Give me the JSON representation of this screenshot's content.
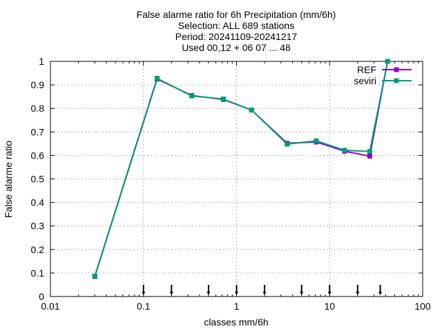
{
  "chart_data": {
    "type": "line",
    "title_lines": [
      "False alarme ratio  for 6h Precipitation (mm/6h)",
      "Selection: ALL    689 stations",
      "Period: 20241109-20241217",
      "Used 00,12 + 06 07 ... 48"
    ],
    "xlabel": "classes mm/6h",
    "ylabel": "False alarme ratio",
    "xscale": "log",
    "xlim": [
      0.01,
      100
    ],
    "ylim": [
      0,
      1
    ],
    "xticks": [
      0.01,
      0.1,
      1,
      10,
      100
    ],
    "xtick_labels": [
      "0.01",
      "0.1",
      "1",
      "10",
      "100"
    ],
    "yticks": [
      0,
      0.1,
      0.2,
      0.3,
      0.4,
      0.5,
      0.6,
      0.7,
      0.8,
      0.9,
      1
    ],
    "ytick_labels": [
      "0",
      "0.1",
      "0.2",
      "0.3",
      "0.4",
      "0.5",
      "0.6",
      "0.7",
      "0.8",
      "0.9",
      "1"
    ],
    "grid": true,
    "legend_position": "top-right",
    "class_thresholds": [
      0.1,
      0.2,
      0.5,
      1,
      2,
      5,
      10,
      20,
      35
    ],
    "series": [
      {
        "name": "REF",
        "color": "#9400d3",
        "x": [
          0.03,
          0.14,
          0.33,
          0.72,
          1.45,
          3.5,
          7.2,
          14.5,
          27,
          42
        ],
        "y": [
          0.085,
          0.925,
          0.855,
          0.838,
          0.793,
          0.652,
          0.657,
          0.618,
          0.597,
          1.0
        ]
      },
      {
        "name": "seviri",
        "color": "#009e73",
        "x": [
          0.03,
          0.14,
          0.33,
          0.72,
          1.45,
          3.5,
          7.2,
          14.5,
          27,
          42
        ],
        "y": [
          0.087,
          0.928,
          0.853,
          0.84,
          0.793,
          0.648,
          0.662,
          0.622,
          0.617,
          1.0
        ]
      }
    ]
  }
}
